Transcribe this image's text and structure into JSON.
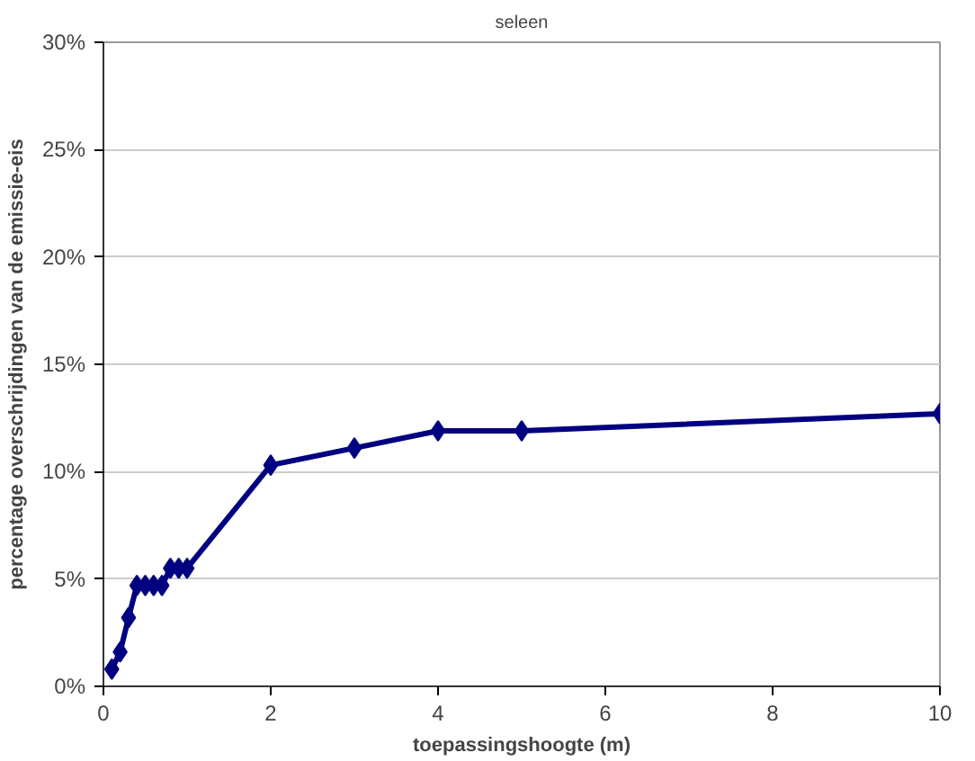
{
  "chart_data": {
    "type": "line",
    "title": "seleen",
    "xlabel": "toepassingshoogte (m)",
    "ylabel": "percentage overschrijdingen van de emissie-eis",
    "x": [
      0.1,
      0.2,
      0.3,
      0.4,
      0.5,
      0.6,
      0.7,
      0.8,
      0.9,
      1.0,
      2,
      3,
      4,
      5,
      10
    ],
    "series": [
      {
        "color": "#000080",
        "values": [
          0.8,
          1.6,
          3.2,
          4.7,
          4.7,
          4.7,
          4.7,
          5.5,
          5.5,
          5.5,
          10.3,
          11.1,
          11.9,
          11.9,
          12.7
        ]
      }
    ],
    "xlim": [
      0,
      10
    ],
    "xticks": [
      0,
      2,
      4,
      6,
      8,
      10
    ],
    "ylim": [
      0,
      30
    ],
    "yticks": [
      {
        "value": 0,
        "label": "0%"
      },
      {
        "value": 5,
        "label": "5%"
      },
      {
        "value": 10,
        "label": "10%"
      },
      {
        "value": 15,
        "label": "15%"
      },
      {
        "value": 20,
        "label": "20%"
      },
      {
        "value": 25,
        "label": "25%"
      },
      {
        "value": 30,
        "label": "30%"
      }
    ],
    "grid": "y",
    "marker": "diamond",
    "line_style": "solid"
  }
}
